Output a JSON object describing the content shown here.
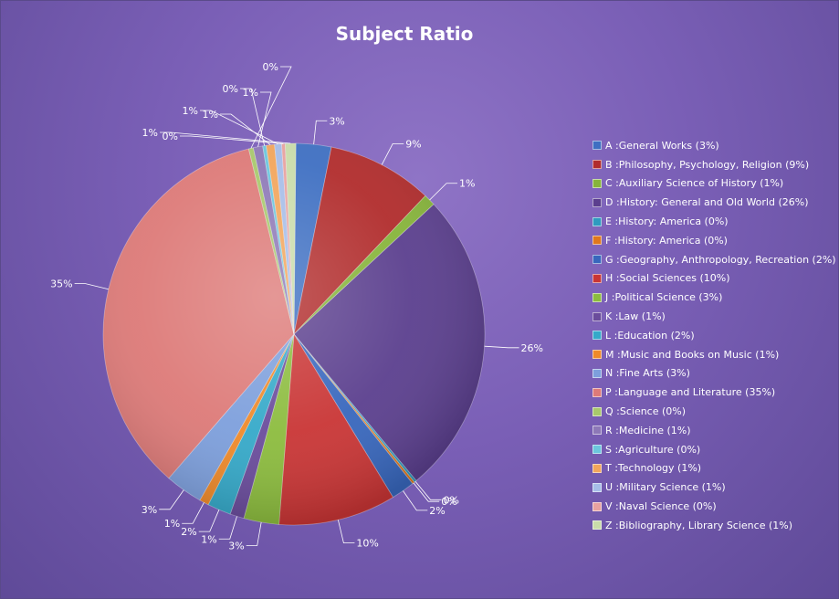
{
  "chart_data": {
    "type": "pie",
    "title": "Subject Ratio",
    "legend_position": "right",
    "slices": [
      {
        "label": "A :General Works (3%)",
        "value": 3,
        "value_label": "3%",
        "color": "#3e6fc2"
      },
      {
        "label": "B :Philosophy, Psychology, Religion (9%)",
        "value": 9,
        "value_label": "9%",
        "color": "#b12c2c"
      },
      {
        "label": "C :Auxiliary Science of History (1%)",
        "value": 1,
        "value_label": "1%",
        "color": "#86b43a"
      },
      {
        "label": "D :History: General and Old World (26%)",
        "value": 26,
        "value_label": "26%",
        "color": "#5b3f8e"
      },
      {
        "label": "E :History: America (0%)",
        "value": 0.2,
        "value_label": "0%",
        "color": "#2f9bbf"
      },
      {
        "label": "F :History: America (0%)",
        "value": 0.2,
        "value_label": "0%",
        "color": "#e0781c"
      },
      {
        "label": "G :Geography, Anthropology, Recreation (2%)",
        "value": 2,
        "value_label": "2%",
        "color": "#3867bd"
      },
      {
        "label": "H :Social Sciences (10%)",
        "value": 10,
        "value_label": "10%",
        "color": "#c93535"
      },
      {
        "label": "J :Political Science (3%)",
        "value": 3,
        "value_label": "3%",
        "color": "#8cbc3e"
      },
      {
        "label": "K :Law (1%)",
        "value": 1.2,
        "value_label": "1%",
        "color": "#6a4c9c"
      },
      {
        "label": "L :Education (2%)",
        "value": 2,
        "value_label": "2%",
        "color": "#35a9c9"
      },
      {
        "label": "M :Music and Books on Music (1%)",
        "value": 0.8,
        "value_label": "1%",
        "color": "#ef8a2a"
      },
      {
        "label": "N :Fine Arts (3%)",
        "value": 3.2,
        "value_label": "3%",
        "color": "#7d9fdc"
      },
      {
        "label": "P :Language and Literature (35%)",
        "value": 35,
        "value_label": "35%",
        "color": "#dd7a78"
      },
      {
        "label": "Q :Science (0%)",
        "value": 0.4,
        "value_label": "0%",
        "color": "#a8c86c"
      },
      {
        "label": "R :Medicine (1%)",
        "value": 0.8,
        "value_label": "1%",
        "color": "#8d78b7"
      },
      {
        "label": "S :Agriculture (0%)",
        "value": 0.3,
        "value_label": "0%",
        "color": "#6cc6dd"
      },
      {
        "label": "T :Technology (1%)",
        "value": 0.7,
        "value_label": "1%",
        "color": "#f2a55b"
      },
      {
        "label": "U :Military Science (1%)",
        "value": 0.6,
        "value_label": "1%",
        "color": "#a6bde8"
      },
      {
        "label": "V :Naval Science (0%)",
        "value": 0.3,
        "value_label": "0%",
        "color": "#e8a2a0"
      },
      {
        "label": "Z :Bibliography, Library Science (1%)",
        "value": 0.9,
        "value_label": "1%",
        "color": "#c9dcaa"
      }
    ]
  }
}
